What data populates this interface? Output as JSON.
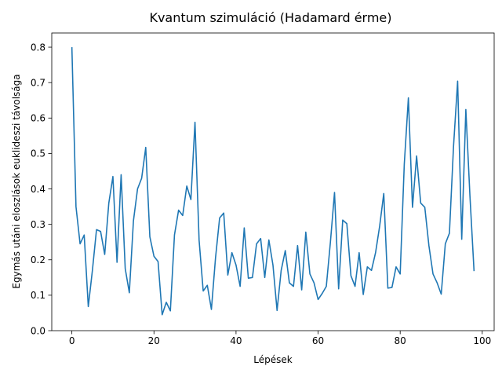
{
  "chart_data": {
    "type": "line",
    "title": "Kvantum szimuláció (Hadamard érme)",
    "xlabel": "Lépések",
    "ylabel": "Egymás utáni eloszlások euklideszi távolsága",
    "xlim": [
      -4.9,
      102.9
    ],
    "ylim": [
      0,
      0.84
    ],
    "xticks": [
      0,
      20,
      40,
      60,
      80,
      100
    ],
    "yticks": [
      0.0,
      0.1,
      0.2,
      0.3,
      0.4,
      0.5,
      0.6,
      0.7,
      0.8
    ],
    "ytick_labels": [
      "0.0",
      "0.1",
      "0.2",
      "0.3",
      "0.4",
      "0.5",
      "0.6",
      "0.7",
      "0.8"
    ],
    "grid": false,
    "legend": "none",
    "series": [
      {
        "color": "#1f77b4",
        "x": [
          0,
          1,
          2,
          3,
          4,
          5,
          6,
          7,
          8,
          9,
          10,
          11,
          12,
          13,
          14,
          15,
          16,
          17,
          18,
          19,
          20,
          21,
          22,
          23,
          24,
          25,
          26,
          27,
          28,
          29,
          30,
          31,
          32,
          33,
          34,
          35,
          36,
          37,
          38,
          39,
          40,
          41,
          42,
          43,
          44,
          45,
          46,
          47,
          48,
          49,
          50,
          51,
          52,
          53,
          54,
          55,
          56,
          57,
          58,
          59,
          60,
          61,
          62,
          63,
          64,
          65,
          66,
          67,
          68,
          69,
          70,
          71,
          72,
          73,
          74,
          75,
          76,
          77,
          78,
          79,
          80,
          81,
          82,
          83,
          84,
          85,
          86,
          87,
          88,
          89,
          90,
          91,
          92,
          93,
          94,
          95,
          96,
          97,
          98
        ],
        "values": [
          0.8,
          0.35,
          0.245,
          0.27,
          0.068,
          0.17,
          0.285,
          0.28,
          0.215,
          0.36,
          0.435,
          0.193,
          0.44,
          0.175,
          0.107,
          0.31,
          0.4,
          0.43,
          0.517,
          0.265,
          0.21,
          0.195,
          0.045,
          0.08,
          0.056,
          0.27,
          0.34,
          0.325,
          0.408,
          0.37,
          0.588,
          0.255,
          0.112,
          0.128,
          0.06,
          0.205,
          0.318,
          0.332,
          0.157,
          0.22,
          0.185,
          0.125,
          0.29,
          0.148,
          0.15,
          0.245,
          0.26,
          0.15,
          0.256,
          0.185,
          0.057,
          0.17,
          0.226,
          0.135,
          0.125,
          0.24,
          0.115,
          0.278,
          0.16,
          0.135,
          0.088,
          0.105,
          0.125,
          0.25,
          0.39,
          0.118,
          0.312,
          0.302,
          0.155,
          0.125,
          0.22,
          0.102,
          0.18,
          0.17,
          0.22,
          0.295,
          0.387,
          0.12,
          0.122,
          0.18,
          0.16,
          0.47,
          0.657,
          0.348,
          0.493,
          0.36,
          0.348,
          0.24,
          0.16,
          0.135,
          0.103,
          0.245,
          0.275,
          0.52,
          0.704,
          0.258,
          0.624,
          0.38,
          0.168
        ]
      }
    ]
  }
}
